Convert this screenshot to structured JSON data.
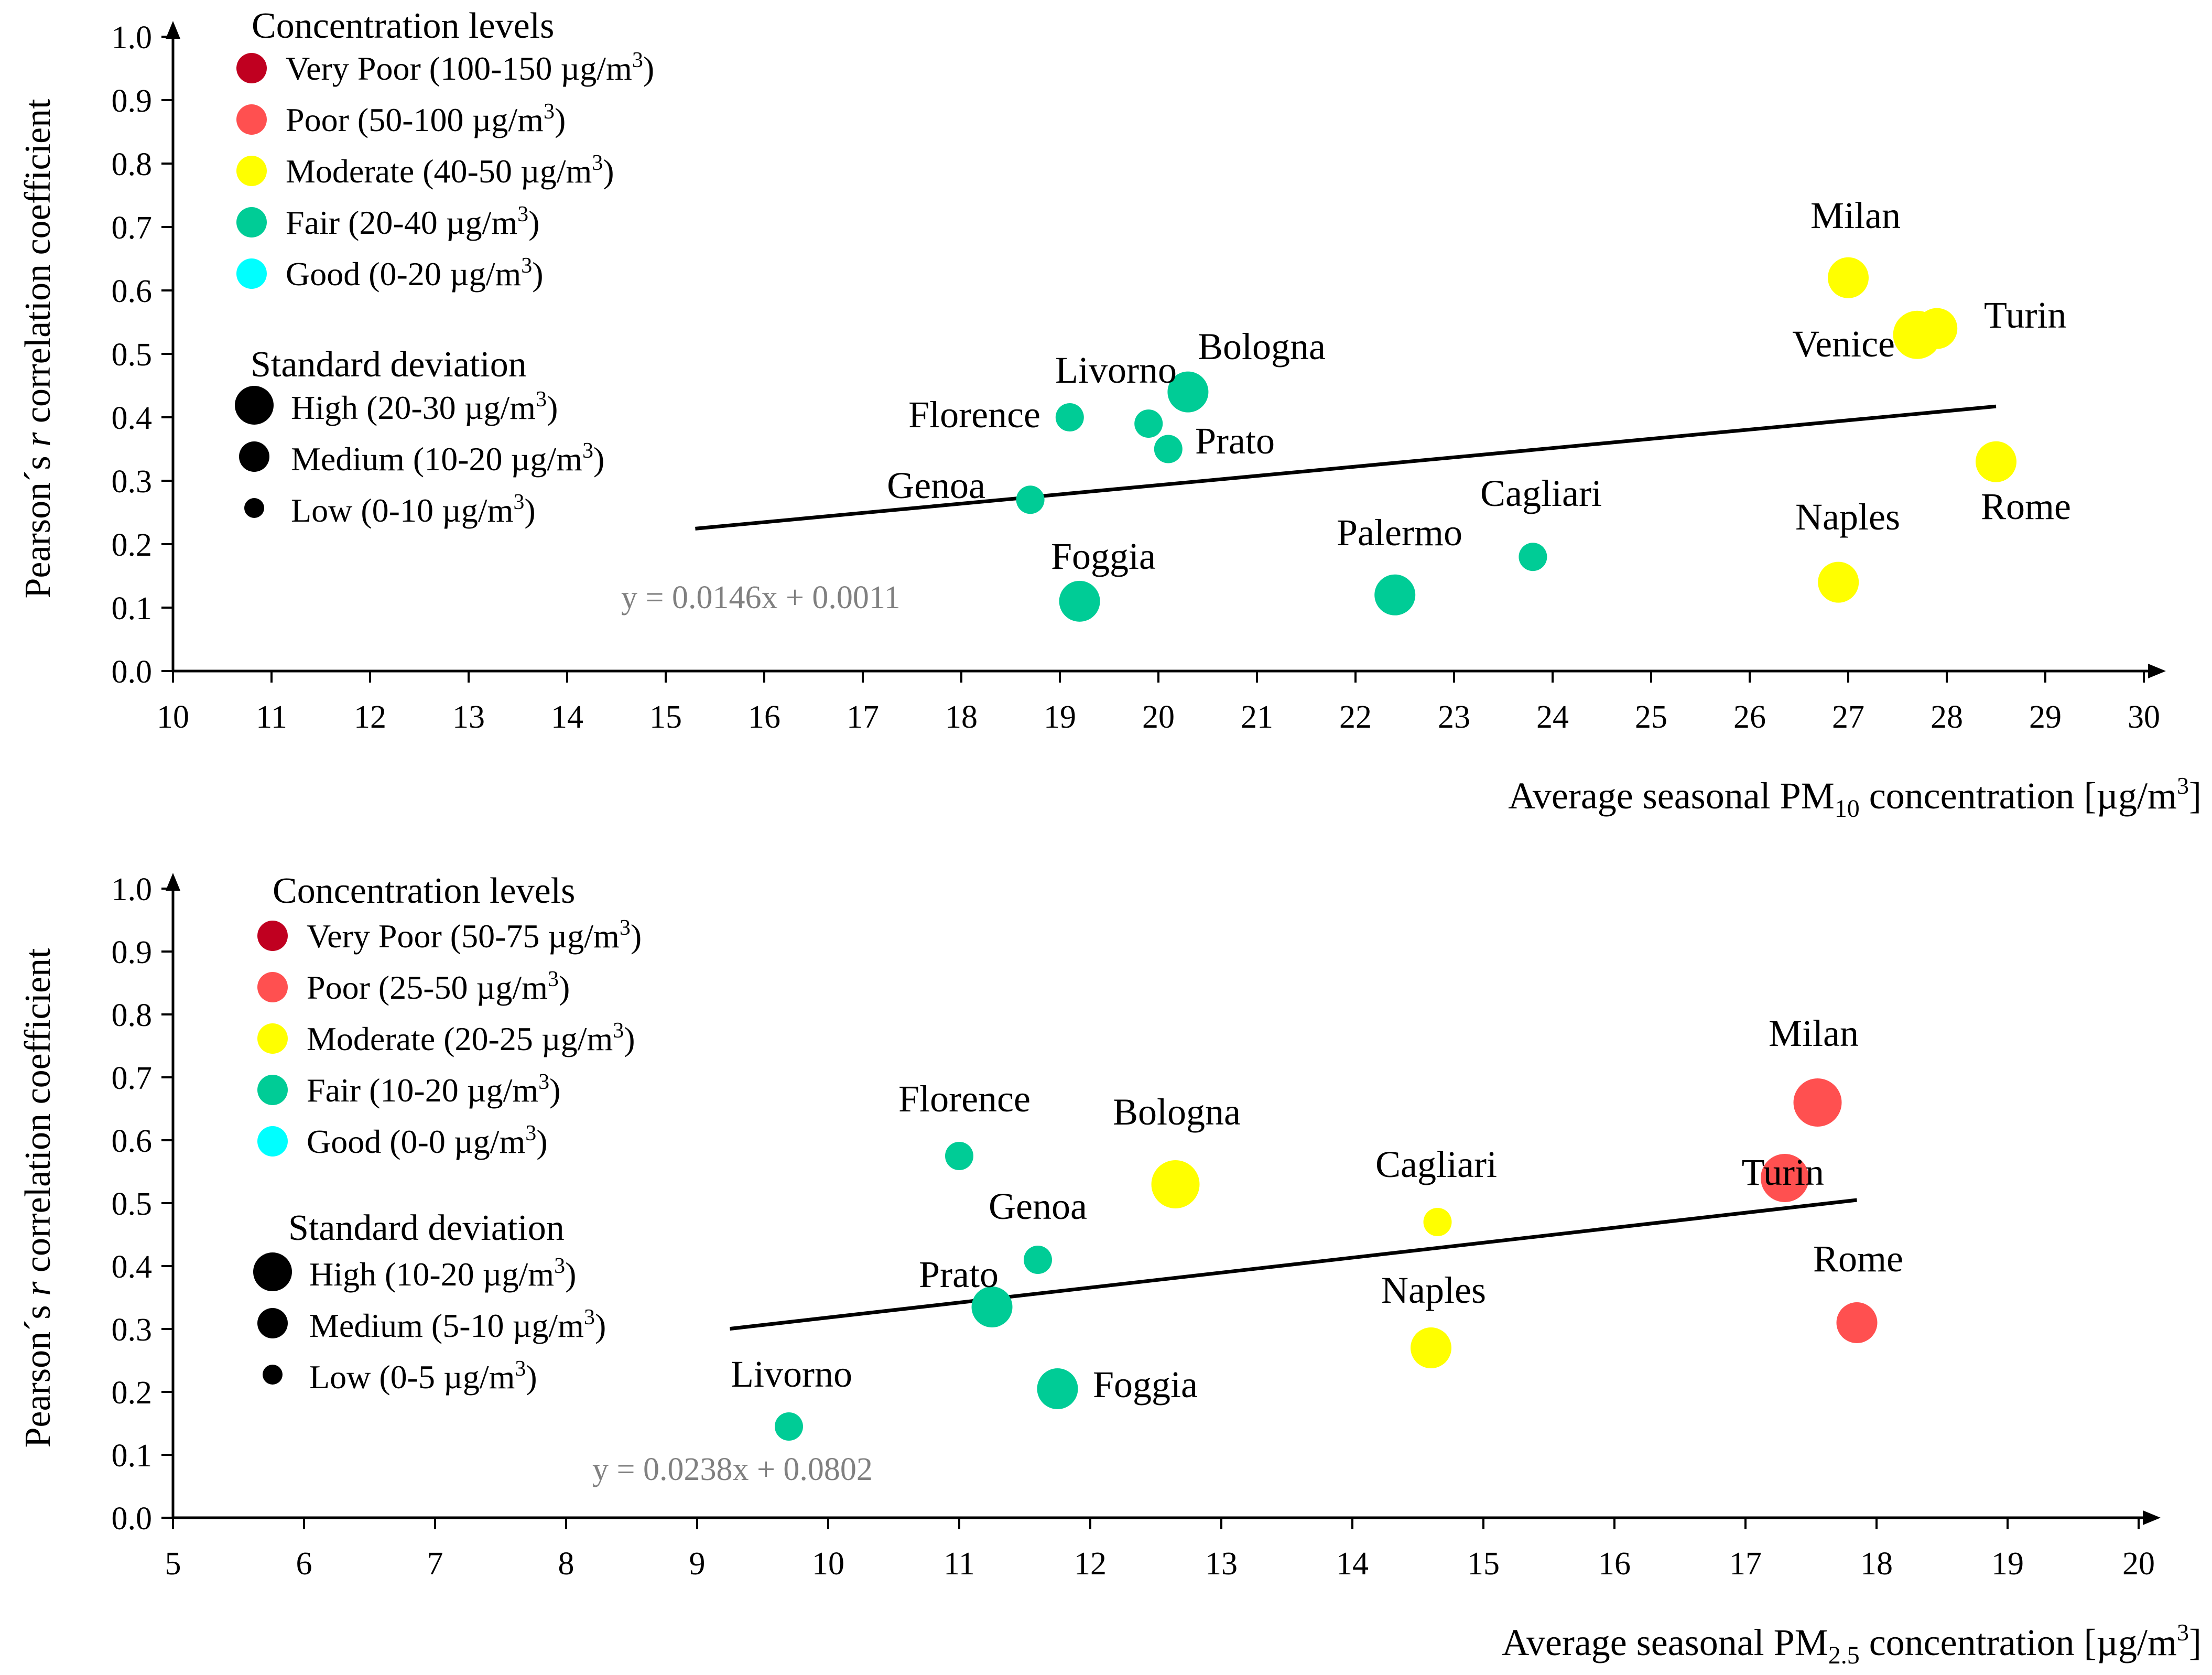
{
  "chart_data": [
    {
      "type": "scatter",
      "xlabel": "Average seasonal PM10 concentration [µg/m3]",
      "xlabel_parts": {
        "pre": "Average seasonal PM",
        "sub": "10",
        "mid": " concentration [µg/m",
        "sup": "3",
        "post": "]"
      },
      "ylabel": "Pearson´s r correlation coefficient",
      "ylabel_parts": {
        "pre": "Pearson´s ",
        "italic": "r",
        "post": " correlation coefficient"
      },
      "xlim": [
        10,
        30
      ],
      "ylim": [
        0.0,
        1.0
      ],
      "x_ticks": [
        "10",
        "11",
        "12",
        "13",
        "14",
        "15",
        "16",
        "17",
        "18",
        "19",
        "20",
        "21",
        "22",
        "23",
        "24",
        "25",
        "26",
        "27",
        "28",
        "29",
        "30"
      ],
      "y_ticks": [
        "0.0",
        "0.1",
        "0.2",
        "0.3",
        "0.4",
        "0.5",
        "0.6",
        "0.7",
        "0.8",
        "0.9",
        "1.0"
      ],
      "legend_concentration": {
        "title": "Concentration levels",
        "items": [
          {
            "label": "Very Poor (100-150 µg/m3)",
            "pre": "Very Poor (100-150 µg/m",
            "sup": "3",
            "post": ")",
            "color": "#c00020"
          },
          {
            "label": "Poor (50-100 µg/m3)",
            "pre": "Poor (50-100 µg/m",
            "sup": "3",
            "post": ")",
            "color": "#ff5050"
          },
          {
            "label": "Moderate (40-50 µg/m3)",
            "pre": "Moderate (40-50 µg/m",
            "sup": "3",
            "post": ")",
            "color": "#ffff00"
          },
          {
            "label": "Fair (20-40 µg/m3)",
            "pre": "Fair (20-40 µg/m",
            "sup": "3",
            "post": ")",
            "color": "#00cc96"
          },
          {
            "label": "Good (0-20 µg/m3)",
            "pre": "Good (0-20 µg/m",
            "sup": "3",
            "post": ")",
            "color": "#00ffff"
          }
        ]
      },
      "legend_std": {
        "title": "Standard deviation",
        "items": [
          {
            "label": "High (20-30 µg/m3)",
            "pre": "High (20-30 µg/m",
            "sup": "3",
            "post": ")",
            "size": "high"
          },
          {
            "label": "Medium (10-20 µg/m3)",
            "pre": "Medium (10-20 µg/m",
            "sup": "3",
            "post": ")",
            "size": "medium"
          },
          {
            "label": "Low (0-10 µg/m3)",
            "pre": "Low (0-10 µg/m",
            "sup": "3",
            "post": ")",
            "size": "low"
          }
        ]
      },
      "points": [
        {
          "city": "Milan",
          "x": 27.0,
          "y": 0.62,
          "level": "Moderate",
          "std": "medium"
        },
        {
          "city": "Turin",
          "x": 27.9,
          "y": 0.54,
          "level": "Moderate",
          "std": "medium"
        },
        {
          "city": "Venice",
          "x": 27.7,
          "y": 0.53,
          "level": "Moderate",
          "std": "high"
        },
        {
          "city": "Rome",
          "x": 28.5,
          "y": 0.33,
          "level": "Moderate",
          "std": "medium"
        },
        {
          "city": "Naples",
          "x": 26.9,
          "y": 0.14,
          "level": "Moderate",
          "std": "medium"
        },
        {
          "city": "Bologna",
          "x": 20.3,
          "y": 0.44,
          "level": "Fair",
          "std": "medium"
        },
        {
          "city": "Livorno",
          "x": 19.9,
          "y": 0.39,
          "level": "Fair",
          "std": "low"
        },
        {
          "city": "Florence",
          "x": 19.1,
          "y": 0.4,
          "level": "Fair",
          "std": "low"
        },
        {
          "city": "Prato",
          "x": 20.1,
          "y": 0.35,
          "level": "Fair",
          "std": "low"
        },
        {
          "city": "Genoa",
          "x": 18.7,
          "y": 0.27,
          "level": "Fair",
          "std": "low"
        },
        {
          "city": "Cagliari",
          "x": 23.8,
          "y": 0.18,
          "level": "Fair",
          "std": "low"
        },
        {
          "city": "Palermo",
          "x": 22.4,
          "y": 0.12,
          "level": "Fair",
          "std": "medium"
        },
        {
          "city": "Foggia",
          "x": 19.2,
          "y": 0.11,
          "level": "Fair",
          "std": "medium"
        }
      ],
      "trendline": {
        "slope": 0.0146,
        "intercept": 0.0011,
        "x_start": 15.3,
        "x_end": 28.5,
        "equation": "y = 0.0146x + 0.0011"
      }
    },
    {
      "type": "scatter",
      "xlabel": "Average seasonal PM2.5 concentration [µg/m3]",
      "xlabel_parts": {
        "pre": "Average seasonal PM",
        "sub": "2.5",
        "mid": " concentration [µg/m",
        "sup": "3",
        "post": "]"
      },
      "ylabel": "Pearson´s r correlation coefficient",
      "ylabel_parts": {
        "pre": "Pearson´s ",
        "italic": "r",
        "post": " correlation coefficient"
      },
      "xlim": [
        5,
        20
      ],
      "ylim": [
        0.0,
        1.0
      ],
      "x_ticks": [
        "5",
        "6",
        "7",
        "8",
        "9",
        "10",
        "11",
        "12",
        "13",
        "14",
        "15",
        "16",
        "17",
        "18",
        "19",
        "20"
      ],
      "y_ticks": [
        "0.0",
        "0.1",
        "0.2",
        "0.3",
        "0.4",
        "0.5",
        "0.6",
        "0.7",
        "0.8",
        "0.9",
        "1.0"
      ],
      "legend_concentration": {
        "title": "Concentration levels",
        "items": [
          {
            "label": "Very Poor (50-75 µg/m3)",
            "pre": "Very Poor (50-75 µg/m",
            "sup": "3",
            "post": ")",
            "color": "#c00020"
          },
          {
            "label": "Poor (25-50 µg/m3)",
            "pre": "Poor (25-50 µg/m",
            "sup": "3",
            "post": ")",
            "color": "#ff5050"
          },
          {
            "label": "Moderate (20-25 µg/m3)",
            "pre": "Moderate (20-25 µg/m",
            "sup": "3",
            "post": ")",
            "color": "#ffff00"
          },
          {
            "label": "Fair (10-20 µg/m3)",
            "pre": "Fair (10-20 µg/m",
            "sup": "3",
            "post": ")",
            "color": "#00cc96"
          },
          {
            "label": "Good (0-0 µg/m3)",
            "pre": "Good (0-0 µg/m",
            "sup": "3",
            "post": ")",
            "color": "#00ffff"
          }
        ]
      },
      "legend_std": {
        "title": "Standard deviation",
        "items": [
          {
            "label": "High (10-20 µg/m3)",
            "pre": "High (10-20 µg/m",
            "sup": "3",
            "post": ")",
            "size": "high"
          },
          {
            "label": "Medium (5-10 µg/m3)",
            "pre": "Medium (5-10 µg/m",
            "sup": "3",
            "post": ")",
            "size": "medium"
          },
          {
            "label": "Low (0-5 µg/m3)",
            "pre": "Low (0-5 µg/m",
            "sup": "3",
            "post": ")",
            "size": "low"
          }
        ]
      },
      "points": [
        {
          "city": "Milan",
          "x": 17.55,
          "y": 0.66,
          "level": "Poor",
          "std": "high"
        },
        {
          "city": "Turin",
          "x": 17.3,
          "y": 0.54,
          "level": "Poor",
          "std": "high"
        },
        {
          "city": "Rome",
          "x": 17.85,
          "y": 0.31,
          "level": "Poor",
          "std": "medium"
        },
        {
          "city": "Bologna",
          "x": 12.65,
          "y": 0.53,
          "level": "Moderate",
          "std": "high"
        },
        {
          "city": "Cagliari",
          "x": 14.65,
          "y": 0.47,
          "level": "Moderate",
          "std": "low"
        },
        {
          "city": "Naples",
          "x": 14.6,
          "y": 0.27,
          "level": "Moderate",
          "std": "medium"
        },
        {
          "city": "Florence",
          "x": 11.0,
          "y": 0.575,
          "level": "Fair",
          "std": "low"
        },
        {
          "city": "Genoa",
          "x": 11.6,
          "y": 0.41,
          "level": "Fair",
          "std": "low"
        },
        {
          "city": "Prato",
          "x": 11.25,
          "y": 0.335,
          "level": "Fair",
          "std": "medium"
        },
        {
          "city": "Foggia",
          "x": 11.75,
          "y": 0.205,
          "level": "Fair",
          "std": "medium"
        },
        {
          "city": "Livorno",
          "x": 9.7,
          "y": 0.145,
          "level": "Fair",
          "std": "low"
        }
      ],
      "trendline": {
        "slope": 0.0238,
        "intercept": 0.0802,
        "x_start": 9.25,
        "x_end": 17.85,
        "equation": "y = 0.0238x + 0.0802"
      }
    }
  ]
}
